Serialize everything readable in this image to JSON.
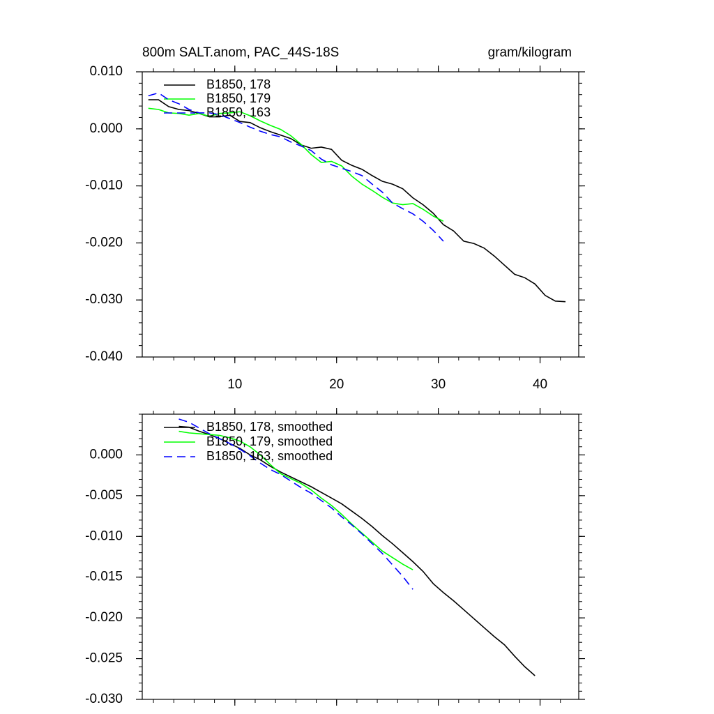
{
  "chart_data": [
    {
      "type": "line",
      "title": "800m SALT.anom, PAC_44S-18S",
      "units": "gram/kilogram",
      "xlim": [
        0.9,
        43.8
      ],
      "xticks": [
        10,
        20,
        30,
        40
      ],
      "ylim": [
        -0.04,
        0.01
      ],
      "yticks": [
        {
          "value": 0.01,
          "label": "0.010"
        },
        {
          "value": 0,
          "label": "0.000"
        },
        {
          "value": -0.01,
          "label": "-0.010"
        },
        {
          "value": -0.02,
          "label": "-0.020"
        },
        {
          "value": -0.03,
          "label": "-0.030"
        },
        {
          "value": -0.04,
          "label": "-0.040"
        }
      ],
      "series": [
        {
          "name": "B1850, 178",
          "color": "#000000",
          "dash": false,
          "x": [
            1.5,
            2.5,
            3.5,
            4.5,
            5.5,
            6.5,
            7.5,
            8.5,
            9.5,
            10.5,
            11.5,
            12.5,
            13.5,
            14.5,
            15.5,
            16.5,
            17.5,
            18.5,
            19.5,
            20.5,
            21.5,
            22.5,
            23.5,
            24.5,
            25.5,
            26.5,
            27.5,
            28.5,
            29.5,
            30.5,
            31.5,
            32.5,
            33.5,
            34.5,
            35.5,
            36.5,
            37.5,
            38.5,
            39.5,
            40.5,
            41.5,
            42.5
          ],
          "values": [
            0.0051,
            0.0051,
            0.0039,
            0.0034,
            0.0032,
            0.0027,
            0.0021,
            0.0021,
            0.0024,
            0.0013,
            0.0011,
            0.0002,
            -0.0005,
            -0.0011,
            -0.0017,
            -0.0028,
            -0.0034,
            -0.0032,
            -0.0036,
            -0.0055,
            -0.0064,
            -0.0071,
            -0.0082,
            -0.0092,
            -0.0097,
            -0.0105,
            -0.0121,
            -0.0133,
            -0.0148,
            -0.0168,
            -0.0179,
            -0.0197,
            -0.0201,
            -0.0209,
            -0.0223,
            -0.0239,
            -0.0255,
            -0.0261,
            -0.0272,
            -0.0292,
            -0.0302,
            -0.0303
          ]
        },
        {
          "name": "B1850, 179",
          "color": "#00ff00",
          "dash": false,
          "x": [
            1.5,
            2.5,
            3.5,
            4.5,
            5.5,
            6.5,
            7.5,
            8.5,
            9.5,
            10.5,
            11.5,
            12.5,
            13.5,
            14.5,
            15.5,
            16.5,
            17.5,
            18.5,
            19.5,
            20.5,
            21.5,
            22.5,
            23.5,
            24.5,
            25.5,
            26.5,
            27.5,
            28.5,
            29.5,
            30.5
          ],
          "values": [
            0.0036,
            0.0034,
            0.0028,
            0.0027,
            0.0024,
            0.0027,
            0.0022,
            0.0027,
            0.0028,
            0.003,
            0.0023,
            0.0014,
            0.0006,
            -0.0001,
            -0.0012,
            -0.0027,
            -0.0045,
            -0.0059,
            -0.0057,
            -0.0065,
            -0.0083,
            -0.0097,
            -0.0108,
            -0.012,
            -0.013,
            -0.0133,
            -0.0131,
            -0.0141,
            -0.0153,
            -0.0162
          ]
        },
        {
          "name": "B1850, 163",
          "color": "#0000ff",
          "dash": true,
          "x": [
            1.5,
            2.5,
            3.5,
            4.5,
            5.5,
            6.5,
            7.5,
            8.5,
            9.5,
            10.5,
            11.5,
            12.5,
            13.5,
            14.5,
            15.5,
            16.5,
            17.5,
            18.5,
            19.5,
            20.5,
            21.5,
            22.5,
            23.5,
            24.5,
            25.5,
            26.5,
            27.5,
            28.5,
            29.5,
            30.5
          ],
          "values": [
            0.0058,
            0.0063,
            0.0051,
            0.0044,
            0.0034,
            0.0028,
            0.0028,
            0.0025,
            0.0018,
            0.0011,
            0.0003,
            -0.0004,
            -0.001,
            -0.0014,
            -0.0023,
            -0.003,
            -0.0038,
            -0.0053,
            -0.0063,
            -0.0069,
            -0.0075,
            -0.0082,
            -0.0097,
            -0.0111,
            -0.013,
            -0.014,
            -0.0149,
            -0.0162,
            -0.0178,
            -0.0197
          ]
        }
      ]
    },
    {
      "type": "line",
      "xlim": [
        0.9,
        43.8
      ],
      "xticks": [
        10,
        20,
        30,
        40
      ],
      "ylim": [
        -0.03,
        0.005
      ],
      "yticks": [
        {
          "value": 0,
          "label": "0.000"
        },
        {
          "value": -0.005,
          "label": "-0.005"
        },
        {
          "value": -0.01,
          "label": "-0.010"
        },
        {
          "value": -0.015,
          "label": "-0.015"
        },
        {
          "value": -0.02,
          "label": "-0.020"
        },
        {
          "value": -0.025,
          "label": "-0.025"
        },
        {
          "value": -0.03,
          "label": "-0.030"
        }
      ],
      "series": [
        {
          "name": "B1850, 178, smoothed",
          "color": "#000000",
          "dash": false,
          "x": [
            4.5,
            5.5,
            6.5,
            7.5,
            8.5,
            9.5,
            10.5,
            11.5,
            12.5,
            13.5,
            14.5,
            15.5,
            16.5,
            17.5,
            18.5,
            19.5,
            20.5,
            21.5,
            22.5,
            23.5,
            24.5,
            25.5,
            26.5,
            27.5,
            28.5,
            29.5,
            30.5,
            31.5,
            32.5,
            33.5,
            34.5,
            35.5,
            36.5,
            37.5,
            38.5,
            39.5
          ],
          "values": [
            0.0035,
            0.0034,
            0.0029,
            0.0025,
            0.002,
            0.0014,
            0.0008,
            0,
            -0.0006,
            -0.0014,
            -0.0021,
            -0.0027,
            -0.0033,
            -0.0039,
            -0.0046,
            -0.0053,
            -0.006,
            -0.0069,
            -0.0078,
            -0.0088,
            -0.0099,
            -0.0109,
            -0.012,
            -0.0131,
            -0.0143,
            -0.0158,
            -0.0169,
            -0.0179,
            -0.019,
            -0.0201,
            -0.0212,
            -0.0223,
            -0.0233,
            -0.0247,
            -0.026,
            -0.0271
          ]
        },
        {
          "name": "B1850, 179, smoothed",
          "color": "#00ff00",
          "dash": false,
          "x": [
            4.5,
            5.5,
            6.5,
            7.5,
            8.5,
            9.5,
            10.5,
            11.5,
            12.5,
            13.5,
            14.5,
            15.5,
            16.5,
            17.5,
            18.5,
            19.5,
            20.5,
            21.5,
            22.5,
            23.5,
            24.5,
            25.5,
            26.5,
            27.5
          ],
          "values": [
            0.0029,
            0.0027,
            0.0026,
            0.0025,
            0.0024,
            0.0021,
            0.0017,
            0.001,
            0,
            -0.0012,
            -0.0023,
            -0.0029,
            -0.0035,
            -0.0043,
            -0.0053,
            -0.0062,
            -0.0073,
            -0.0085,
            -0.0096,
            -0.0107,
            -0.0118,
            -0.0126,
            -0.0134,
            -0.0141
          ]
        },
        {
          "name": "B1850, 163, smoothed",
          "color": "#0000ff",
          "dash": true,
          "x": [
            4.5,
            5.5,
            6.5,
            7.5,
            8.5,
            9.5,
            10.5,
            11.5,
            12.5,
            13.5,
            14.5,
            15.5,
            16.5,
            17.5,
            18.5,
            19.5,
            20.5,
            21.5,
            22.5,
            23.5,
            24.5,
            25.5,
            26.5,
            27.5
          ],
          "values": [
            0.0044,
            0.004,
            0.0033,
            0.0026,
            0.002,
            0.0014,
            0.0007,
            -0.0001,
            -0.001,
            -0.0018,
            -0.0024,
            -0.0032,
            -0.004,
            -0.0047,
            -0.0056,
            -0.0065,
            -0.0076,
            -0.0086,
            -0.0097,
            -0.0109,
            -0.0121,
            -0.0135,
            -0.0149,
            -0.0165
          ]
        }
      ]
    }
  ]
}
